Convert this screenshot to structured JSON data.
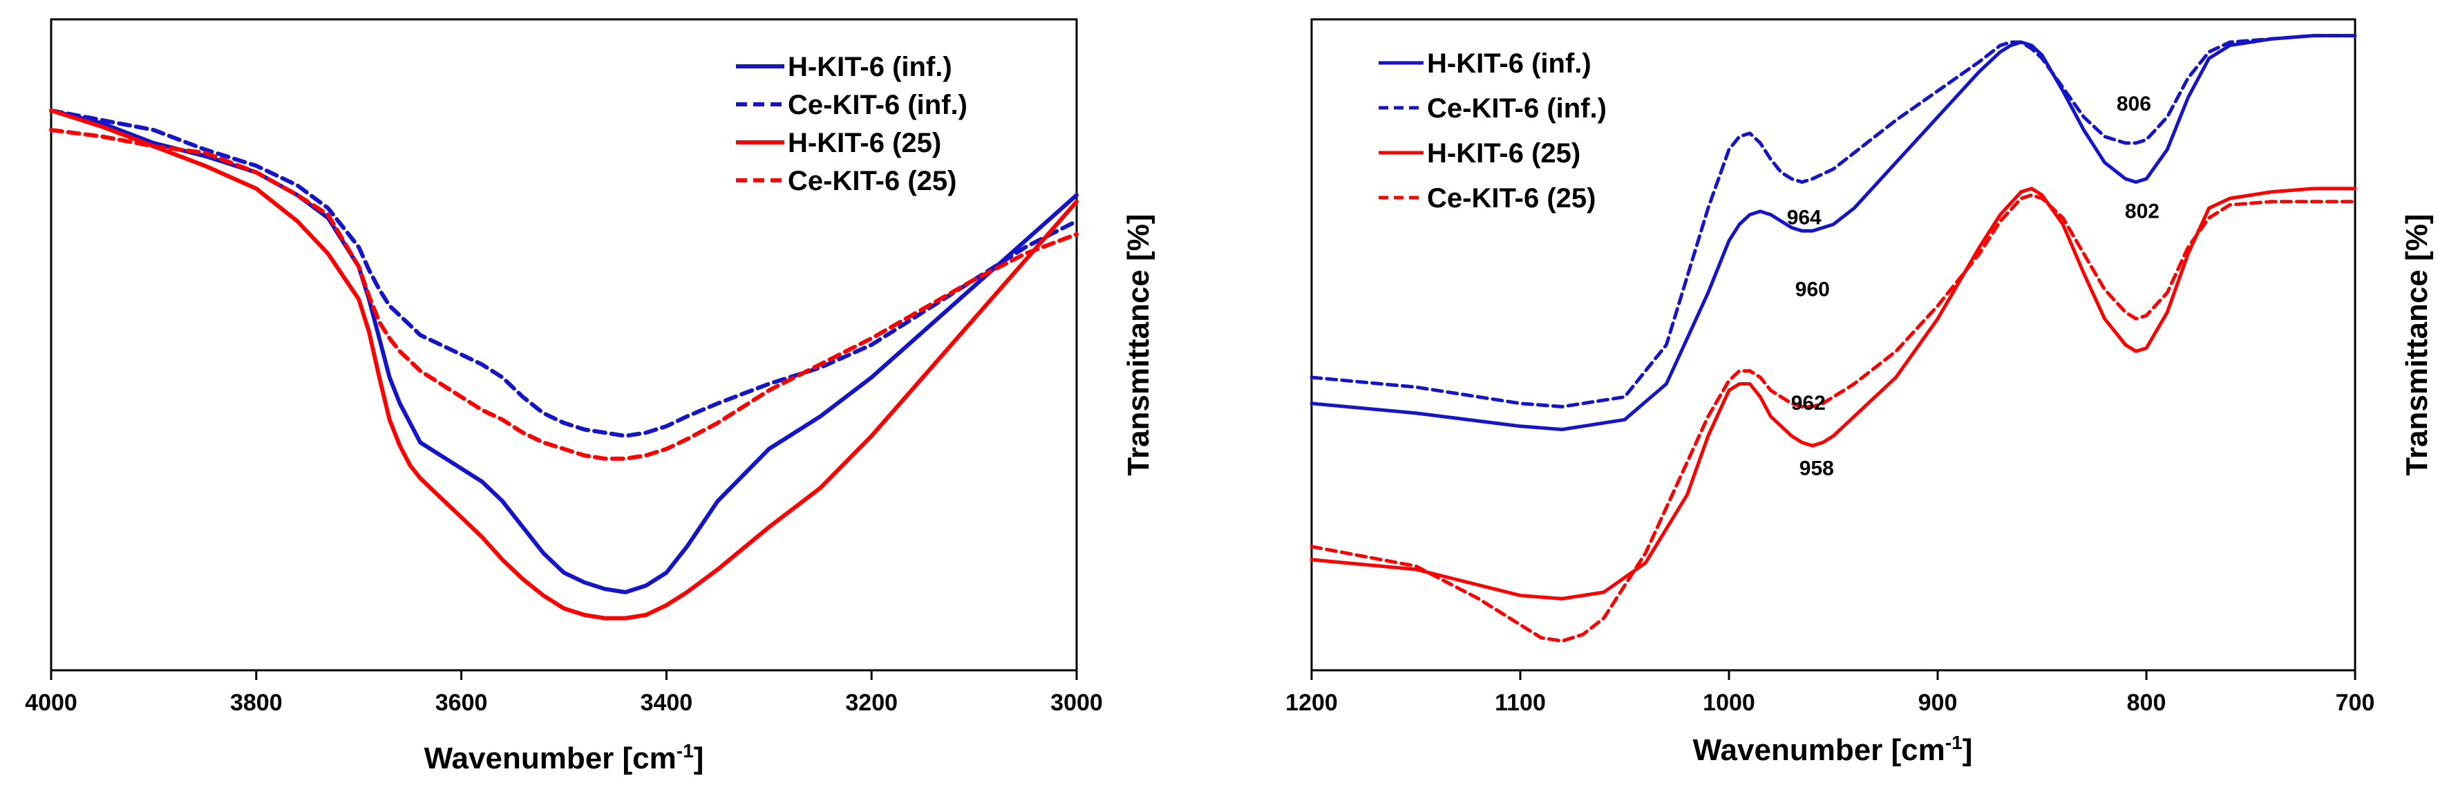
{
  "chart_data": [
    {
      "type": "line",
      "panel": "left",
      "title": "",
      "xlabel": "Wavenumber [cm",
      "xlabel_sup": "-1",
      "xlabel_end": "]",
      "ylabel": "Transmittance [%]",
      "xlim": [
        4000,
        3000
      ],
      "ylim": [
        0,
        100
      ],
      "xticks": [
        "4000",
        "3800",
        "3600",
        "3400",
        "3200",
        "3000"
      ],
      "grid": false,
      "legend_position": "top-right",
      "series": [
        {
          "name": "H-KIT-6 (inf.)",
          "color": "#1414c8",
          "dash": "solid",
          "x": [
            4000,
            3950,
            3900,
            3850,
            3800,
            3760,
            3730,
            3700,
            3690,
            3680,
            3670,
            3660,
            3650,
            3640,
            3620,
            3600,
            3580,
            3560,
            3540,
            3520,
            3500,
            3480,
            3460,
            3440,
            3420,
            3400,
            3380,
            3350,
            3300,
            3250,
            3200,
            3150,
            3100,
            3050,
            3000
          ],
          "y": [
            86,
            84,
            81,
            79,
            76.5,
            73,
            69.5,
            62,
            57,
            51,
            45,
            41,
            38,
            35,
            33,
            31,
            29,
            26,
            22,
            18,
            15,
            13.5,
            12.5,
            12,
            13,
            15,
            19,
            26,
            34,
            39,
            45,
            52,
            59,
            66,
            73
          ]
        },
        {
          "name": "Ce-KIT-6 (inf.)",
          "color": "#1414c8",
          "dash": "dashed",
          "x": [
            4000,
            3950,
            3900,
            3850,
            3800,
            3760,
            3730,
            3700,
            3690,
            3680,
            3670,
            3660,
            3650,
            3640,
            3620,
            3600,
            3580,
            3560,
            3540,
            3520,
            3500,
            3480,
            3460,
            3440,
            3420,
            3400,
            3380,
            3350,
            3300,
            3250,
            3200,
            3150,
            3100,
            3050,
            3000
          ],
          "y": [
            86,
            84.5,
            83,
            80,
            77.5,
            74.5,
            71,
            65,
            61.5,
            58.5,
            56,
            54.5,
            53,
            51.5,
            50,
            48.5,
            47,
            45,
            42,
            39.5,
            38,
            37,
            36.5,
            36,
            36.5,
            37.5,
            39,
            41,
            44,
            46.5,
            50,
            55,
            60,
            65,
            69
          ]
        },
        {
          "name": "H-KIT-6 (25)",
          "color": "#ff0000",
          "dash": "solid",
          "x": [
            4000,
            3950,
            3900,
            3850,
            3800,
            3760,
            3730,
            3700,
            3690,
            3680,
            3670,
            3660,
            3650,
            3640,
            3620,
            3600,
            3580,
            3560,
            3540,
            3520,
            3500,
            3480,
            3460,
            3440,
            3420,
            3400,
            3380,
            3350,
            3300,
            3250,
            3200,
            3150,
            3100,
            3050,
            3000
          ],
          "y": [
            86,
            83.5,
            80.5,
            77.5,
            74,
            69,
            64,
            57,
            52,
            45,
            38.5,
            34.5,
            31.5,
            29.5,
            26.5,
            23.5,
            20.5,
            17,
            14,
            11.5,
            9.5,
            8.5,
            8,
            8,
            8.5,
            10,
            12,
            15.5,
            22,
            28,
            36,
            45,
            54,
            63,
            72
          ]
        },
        {
          "name": "Ce-KIT-6 (25)",
          "color": "#ff0000",
          "dash": "dashed",
          "x": [
            4000,
            3950,
            3900,
            3850,
            3800,
            3760,
            3730,
            3700,
            3690,
            3680,
            3670,
            3660,
            3650,
            3640,
            3620,
            3600,
            3580,
            3560,
            3540,
            3520,
            3500,
            3480,
            3460,
            3440,
            3420,
            3400,
            3380,
            3350,
            3300,
            3250,
            3200,
            3150,
            3100,
            3050,
            3000
          ],
          "y": [
            83,
            82,
            80.5,
            79.5,
            76.5,
            73,
            70,
            62,
            57.5,
            53.5,
            51,
            49,
            47.5,
            46,
            44,
            42,
            40,
            38.5,
            36.5,
            35,
            34,
            33,
            32.5,
            32.5,
            33,
            34,
            35.5,
            38,
            43,
            47,
            51,
            55.5,
            60,
            64,
            67
          ]
        }
      ]
    },
    {
      "type": "line",
      "panel": "right",
      "title": "",
      "xlabel": "Wavenumber [cm",
      "xlabel_sup": "-1",
      "xlabel_end": "]",
      "ylabel": "Transmittance [%]",
      "xlim": [
        1200,
        700
      ],
      "ylim": [
        0,
        100
      ],
      "xticks": [
        "1200",
        "1100",
        "1000",
        "900",
        "800",
        "700"
      ],
      "grid": false,
      "legend_position": "top-left",
      "annotations": [
        {
          "text": "806",
          "x": 806,
          "y": 86
        },
        {
          "text": "964",
          "x": 964,
          "y": 68.5
        },
        {
          "text": "802",
          "x": 802,
          "y": 69.5
        },
        {
          "text": "960",
          "x": 960,
          "y": 57.5
        },
        {
          "text": "962",
          "x": 962,
          "y": 40
        },
        {
          "text": "958",
          "x": 958,
          "y": 30
        }
      ],
      "series": [
        {
          "name": "H-KIT-6 (inf.)",
          "color": "#1414c8",
          "dash": "solid",
          "x": [
            1200,
            1150,
            1100,
            1080,
            1050,
            1030,
            1010,
            1000,
            995,
            990,
            985,
            980,
            975,
            970,
            965,
            960,
            950,
            940,
            920,
            900,
            880,
            870,
            865,
            860,
            855,
            850,
            840,
            830,
            820,
            810,
            805,
            800,
            790,
            780,
            770,
            760,
            740,
            720,
            700
          ],
          "y": [
            41,
            39.5,
            37.5,
            37,
            38.5,
            44,
            58,
            66,
            68.5,
            70,
            70.5,
            70,
            69,
            68,
            67.5,
            67.5,
            68.5,
            71,
            78,
            85,
            92,
            95,
            96,
            96.5,
            96,
            94.5,
            89,
            83,
            78,
            75.5,
            75,
            75.5,
            80,
            88,
            94,
            96,
            97,
            97.5,
            97.5
          ]
        },
        {
          "name": "Ce-KIT-6 (inf.)",
          "color": "#1414c8",
          "dash": "dashed",
          "x": [
            1200,
            1150,
            1100,
            1080,
            1050,
            1030,
            1010,
            1000,
            995,
            990,
            985,
            980,
            975,
            970,
            965,
            960,
            950,
            940,
            920,
            900,
            880,
            870,
            865,
            860,
            855,
            850,
            840,
            830,
            820,
            810,
            805,
            800,
            790,
            780,
            770,
            760,
            740,
            720,
            700
          ],
          "y": [
            45,
            43.5,
            41,
            40.5,
            42,
            50,
            71,
            80,
            82,
            82.5,
            81,
            78.5,
            76.5,
            75.5,
            75,
            75.5,
            77,
            79.5,
            84.5,
            89,
            93.5,
            96,
            96.5,
            96.5,
            95.5,
            94,
            89.5,
            85,
            82,
            81,
            81,
            81.5,
            85,
            91,
            95,
            96.5,
            97,
            97.5,
            97.5
          ]
        },
        {
          "name": "H-KIT-6 (25)",
          "color": "#ff0000",
          "dash": "solid",
          "x": [
            1200,
            1150,
            1100,
            1080,
            1060,
            1040,
            1020,
            1010,
            1000,
            995,
            990,
            985,
            980,
            970,
            965,
            960,
            955,
            950,
            940,
            920,
            900,
            880,
            870,
            860,
            855,
            850,
            840,
            830,
            820,
            810,
            805,
            800,
            790,
            780,
            770,
            760,
            740,
            720,
            700
          ],
          "y": [
            17,
            15.5,
            11.5,
            11,
            12,
            16.5,
            27,
            36,
            43,
            44,
            44,
            42,
            39,
            36,
            35,
            34.5,
            35,
            36,
            39,
            45,
            54,
            65,
            70,
            73.5,
            74,
            73,
            68.5,
            61,
            54,
            50,
            49,
            49.5,
            55,
            64,
            71,
            72.5,
            73.5,
            74,
            74
          ]
        },
        {
          "name": "Ce-KIT-6 (25)",
          "color": "#ff0000",
          "dash": "dashed",
          "x": [
            1200,
            1150,
            1120,
            1100,
            1090,
            1080,
            1070,
            1060,
            1040,
            1020,
            1010,
            1000,
            995,
            990,
            985,
            980,
            970,
            965,
            960,
            955,
            950,
            940,
            920,
            900,
            880,
            870,
            860,
            855,
            850,
            840,
            830,
            820,
            810,
            805,
            800,
            790,
            780,
            770,
            760,
            740,
            720,
            700
          ],
          "y": [
            19,
            16,
            11,
            7,
            5,
            4.5,
            5.5,
            8,
            18,
            32,
            39,
            44.5,
            46,
            46,
            45,
            43,
            41,
            40.5,
            40.5,
            41,
            42,
            44,
            49,
            56,
            64,
            69,
            72.5,
            73,
            72.5,
            69.5,
            64,
            58.5,
            55,
            54,
            54.5,
            58,
            65,
            69.5,
            71.5,
            72,
            72,
            72
          ]
        }
      ]
    }
  ]
}
